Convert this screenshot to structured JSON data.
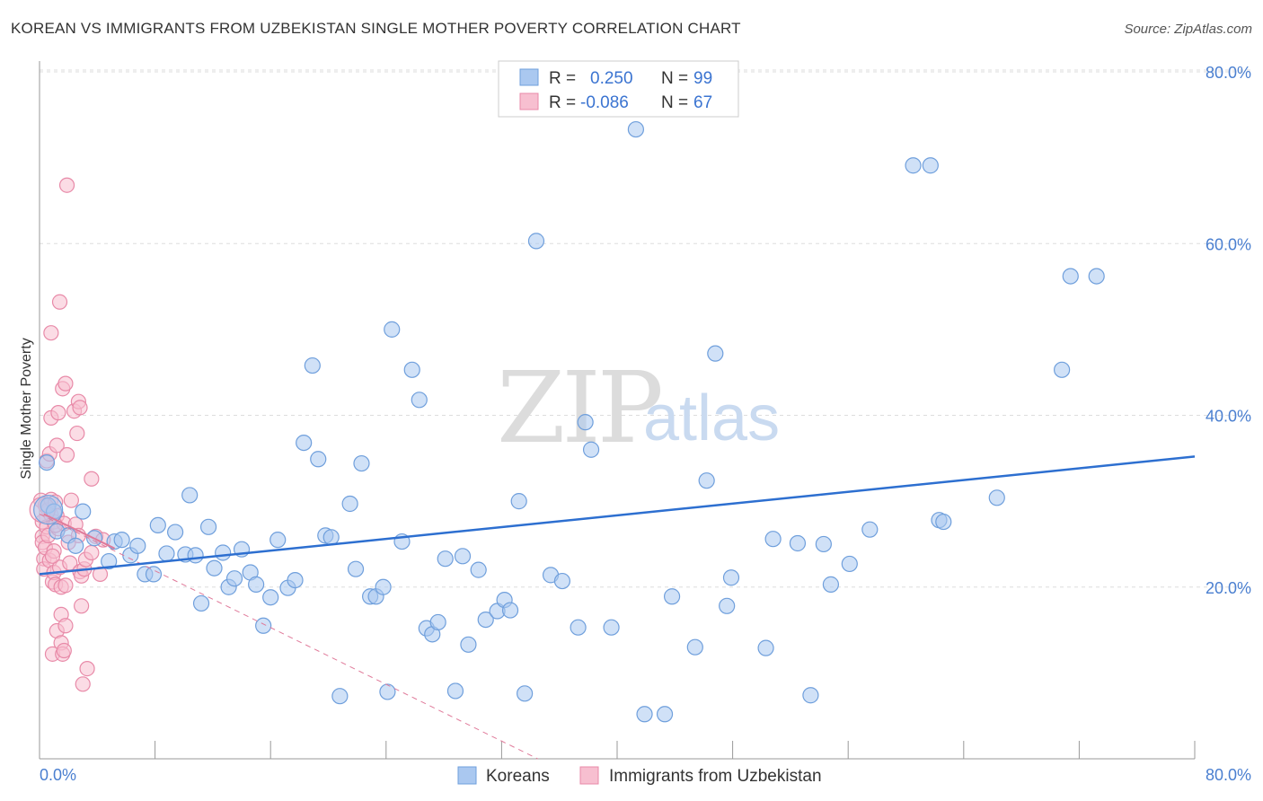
{
  "title": "KOREAN VS IMMIGRANTS FROM UZBEKISTAN SINGLE MOTHER POVERTY CORRELATION CHART",
  "source": "Source: ZipAtlas.com",
  "watermark": {
    "zip": "ZIP",
    "atlas": "atlas"
  },
  "colors": {
    "koreans_fill": "#aac8f0",
    "koreans_stroke": "#6f9fdc",
    "koreans_line": "#2d6fd0",
    "uzbek_fill": "#f7bfd0",
    "uzbek_stroke": "#e88aa8",
    "uzbek_line": "#e07a9a",
    "grid": "#dddddd",
    "axis_text": "#4a7fd0"
  },
  "legend": {
    "rows": [
      {
        "r_label": "R =",
        "r_value": "0.250",
        "n_label": "N =",
        "n_value": "99"
      },
      {
        "r_label": "R =",
        "r_value": "-0.086",
        "n_label": "N =",
        "n_value": "67"
      }
    ]
  },
  "chart_data": {
    "type": "scatter",
    "title": "KOREAN VS IMMIGRANTS FROM UZBEKISTAN SINGLE MOTHER POVERTY CORRELATION CHART",
    "xlabel": "",
    "ylabel": "Single Mother Poverty",
    "xlim": [
      0,
      80
    ],
    "ylim": [
      0,
      80
    ],
    "x_tick_labels": [
      "0.0%",
      "80.0%"
    ],
    "y_ticks": [
      20,
      40,
      60,
      80
    ],
    "y_tick_labels": [
      "20.0%",
      "40.0%",
      "60.0%",
      "80.0%"
    ],
    "grid": true,
    "legend_position": "top-center",
    "series": [
      {
        "name": "Koreans",
        "r": 0.25,
        "n": 99,
        "trend": {
          "x": [
            0,
            80
          ],
          "y": [
            21.5,
            35.2
          ],
          "style": "solid"
        },
        "points": [
          [
            0.5,
            34.5
          ],
          [
            0.6,
            29.5
          ],
          [
            1.0,
            28.8
          ],
          [
            1.2,
            26.5
          ],
          [
            2.0,
            26.0
          ],
          [
            2.5,
            24.8
          ],
          [
            3.0,
            28.8
          ],
          [
            3.8,
            25.7
          ],
          [
            4.8,
            23.0
          ],
          [
            5.2,
            25.3
          ],
          [
            5.7,
            25.5
          ],
          [
            6.3,
            23.7
          ],
          [
            6.8,
            24.8
          ],
          [
            7.3,
            21.5
          ],
          [
            7.9,
            21.5
          ],
          [
            8.2,
            27.2
          ],
          [
            8.8,
            23.9
          ],
          [
            9.4,
            26.4
          ],
          [
            10.1,
            23.8
          ],
          [
            10.4,
            30.7
          ],
          [
            10.8,
            23.7
          ],
          [
            11.2,
            18.1
          ],
          [
            11.7,
            27.0
          ],
          [
            12.1,
            22.2
          ],
          [
            12.7,
            24.0
          ],
          [
            13.1,
            20.0
          ],
          [
            13.5,
            21.0
          ],
          [
            14.0,
            24.4
          ],
          [
            14.6,
            21.7
          ],
          [
            15.0,
            20.3
          ],
          [
            15.5,
            15.5
          ],
          [
            16.0,
            18.8
          ],
          [
            16.5,
            25.5
          ],
          [
            17.2,
            19.9
          ],
          [
            17.7,
            20.8
          ],
          [
            18.3,
            36.8
          ],
          [
            18.9,
            45.8
          ],
          [
            19.3,
            34.9
          ],
          [
            19.8,
            26.0
          ],
          [
            20.2,
            25.8
          ],
          [
            20.8,
            7.3
          ],
          [
            21.5,
            29.7
          ],
          [
            21.9,
            22.1
          ],
          [
            22.3,
            34.4
          ],
          [
            22.9,
            18.9
          ],
          [
            23.3,
            18.9
          ],
          [
            23.8,
            20.0
          ],
          [
            24.1,
            7.8
          ],
          [
            24.4,
            50.0
          ],
          [
            25.1,
            25.3
          ],
          [
            25.8,
            45.3
          ],
          [
            26.3,
            41.8
          ],
          [
            26.8,
            15.2
          ],
          [
            27.2,
            14.5
          ],
          [
            27.6,
            15.9
          ],
          [
            28.1,
            23.3
          ],
          [
            28.8,
            7.9
          ],
          [
            29.3,
            23.6
          ],
          [
            29.7,
            13.3
          ],
          [
            30.4,
            22.0
          ],
          [
            30.9,
            16.2
          ],
          [
            31.7,
            17.2
          ],
          [
            32.2,
            18.5
          ],
          [
            32.6,
            17.3
          ],
          [
            33.2,
            30.0
          ],
          [
            33.6,
            7.6
          ],
          [
            34.4,
            60.3
          ],
          [
            35.4,
            21.4
          ],
          [
            36.2,
            20.7
          ],
          [
            37.3,
            15.3
          ],
          [
            37.8,
            39.2
          ],
          [
            38.2,
            36.0
          ],
          [
            39.6,
            15.3
          ],
          [
            41.3,
            73.3
          ],
          [
            41.9,
            5.2
          ],
          [
            43.3,
            5.2
          ],
          [
            43.8,
            18.9
          ],
          [
            45.4,
            13.0
          ],
          [
            46.2,
            32.4
          ],
          [
            46.8,
            47.2
          ],
          [
            47.6,
            17.8
          ],
          [
            47.9,
            21.1
          ],
          [
            50.3,
            12.9
          ],
          [
            50.8,
            25.6
          ],
          [
            52.5,
            25.1
          ],
          [
            53.4,
            7.4
          ],
          [
            54.3,
            25.0
          ],
          [
            54.8,
            20.3
          ],
          [
            56.1,
            22.7
          ],
          [
            57.5,
            26.7
          ],
          [
            60.5,
            69.1
          ],
          [
            61.7,
            69.1
          ],
          [
            62.3,
            27.8
          ],
          [
            62.6,
            27.6
          ],
          [
            66.3,
            30.4
          ],
          [
            70.8,
            45.3
          ],
          [
            71.4,
            56.2
          ],
          [
            73.2,
            56.2
          ]
        ],
        "big_point": [
          0.6,
          29.0
        ]
      },
      {
        "name": "Immigrants from Uzbekistan",
        "r": -0.086,
        "n": 67,
        "trend": {
          "x": [
            0,
            34.5
          ],
          "y": [
            28.5,
            0
          ],
          "style": "dashed"
        },
        "points": [
          [
            0.1,
            30.1
          ],
          [
            0.2,
            27.6
          ],
          [
            0.2,
            25.9
          ],
          [
            0.2,
            25.2
          ],
          [
            0.3,
            23.3
          ],
          [
            0.3,
            22.1
          ],
          [
            0.4,
            29.5
          ],
          [
            0.4,
            24.6
          ],
          [
            0.5,
            34.7
          ],
          [
            0.5,
            27.0
          ],
          [
            0.6,
            29.0
          ],
          [
            0.6,
            26.0
          ],
          [
            0.7,
            35.5
          ],
          [
            0.7,
            23.1
          ],
          [
            0.8,
            30.2
          ],
          [
            0.8,
            28.4
          ],
          [
            0.8,
            39.7
          ],
          [
            0.8,
            49.6
          ],
          [
            0.9,
            20.6
          ],
          [
            0.9,
            12.2
          ],
          [
            1.0,
            24.2
          ],
          [
            1.0,
            27.6
          ],
          [
            1.0,
            21.7
          ],
          [
            1.1,
            29.9
          ],
          [
            1.1,
            20.3
          ],
          [
            1.2,
            14.9
          ],
          [
            1.2,
            36.5
          ],
          [
            1.2,
            28.3
          ],
          [
            1.3,
            40.3
          ],
          [
            1.3,
            26.8
          ],
          [
            1.4,
            53.2
          ],
          [
            1.4,
            22.3
          ],
          [
            1.5,
            13.5
          ],
          [
            1.5,
            20.0
          ],
          [
            1.5,
            16.8
          ],
          [
            1.6,
            43.1
          ],
          [
            1.6,
            12.2
          ],
          [
            1.7,
            27.4
          ],
          [
            1.7,
            12.6
          ],
          [
            1.8,
            15.5
          ],
          [
            1.8,
            43.7
          ],
          [
            1.8,
            20.2
          ],
          [
            1.9,
            66.8
          ],
          [
            1.9,
            35.4
          ],
          [
            2.0,
            25.2
          ],
          [
            2.1,
            22.8
          ],
          [
            2.2,
            30.1
          ],
          [
            2.4,
            40.5
          ],
          [
            2.5,
            27.3
          ],
          [
            2.6,
            37.9
          ],
          [
            2.7,
            26.0
          ],
          [
            2.7,
            41.6
          ],
          [
            2.8,
            21.8
          ],
          [
            2.8,
            40.9
          ],
          [
            2.9,
            17.8
          ],
          [
            2.9,
            21.3
          ],
          [
            3.0,
            8.7
          ],
          [
            3.1,
            22.1
          ],
          [
            3.2,
            23.2
          ],
          [
            3.3,
            10.5
          ],
          [
            3.6,
            32.6
          ],
          [
            3.6,
            24.0
          ],
          [
            3.9,
            25.9
          ],
          [
            4.2,
            21.5
          ],
          [
            4.4,
            25.5
          ],
          [
            1.1,
            27.2
          ],
          [
            0.9,
            23.6
          ]
        ],
        "big_point": [
          0.2,
          29.0
        ]
      }
    ]
  },
  "bottom_legend": {
    "koreans_label": "Koreans",
    "uzbek_label": "Immigrants from Uzbekistan"
  }
}
